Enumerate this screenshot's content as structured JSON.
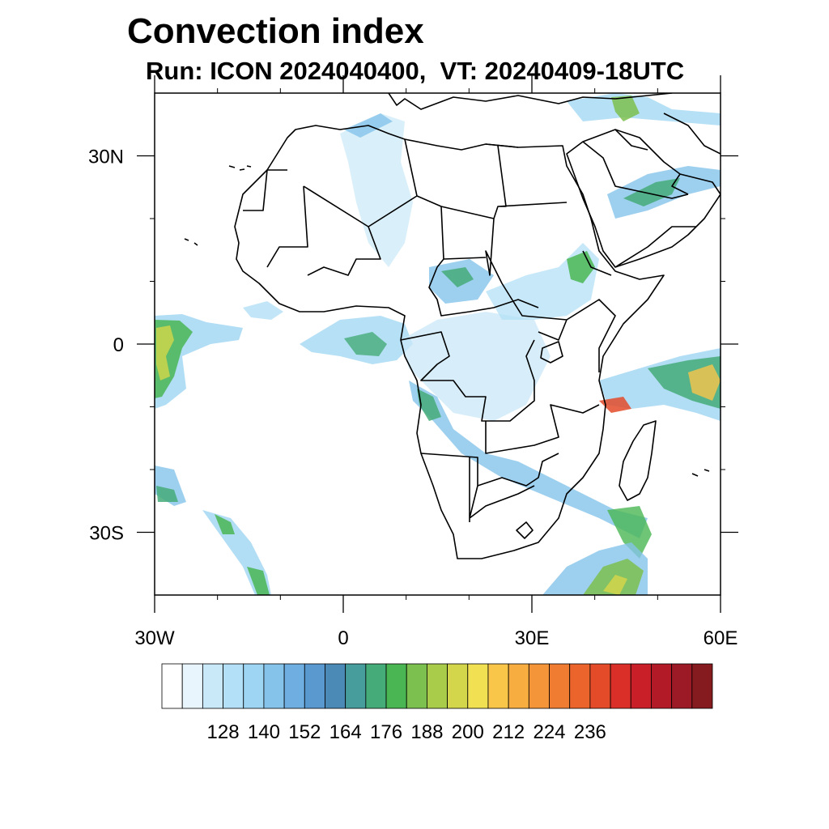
{
  "title": "Convection index",
  "subtitle": "Run: ICON 2024040400,  VT: 20240409-18UTC",
  "map": {
    "lon_range": [
      -30,
      60
    ],
    "lat_range": [
      -40,
      40
    ],
    "lat_ticks": [
      {
        "value": 30,
        "label": "30N"
      },
      {
        "value": 0,
        "label": "0"
      },
      {
        "value": -30,
        "label": "30S"
      }
    ],
    "lon_ticks": [
      {
        "value": -30,
        "label": "30W"
      },
      {
        "value": 0,
        "label": "0"
      },
      {
        "value": 30,
        "label": "30E"
      },
      {
        "value": 60,
        "label": "60E"
      }
    ]
  },
  "colorbar": {
    "colors": [
      "#ffffff",
      "#e9f5fc",
      "#c9e8f8",
      "#b3e0f6",
      "#9dd5f2",
      "#85c3ea",
      "#6faee0",
      "#5a99d0",
      "#4b8ab6",
      "#479d9c",
      "#45ab78",
      "#4ab653",
      "#7cc04f",
      "#a9cc4b",
      "#d3d64a",
      "#f1e052",
      "#f9c64a",
      "#f7ad3f",
      "#f39538",
      "#ef7c31",
      "#eb642c",
      "#e34b29",
      "#d92f28",
      "#c91f29",
      "#b21a27",
      "#9c1a25",
      "#861b1f"
    ],
    "labels": [
      "128",
      "140",
      "152",
      "164",
      "176",
      "188",
      "200",
      "212",
      "224",
      "236"
    ]
  }
}
